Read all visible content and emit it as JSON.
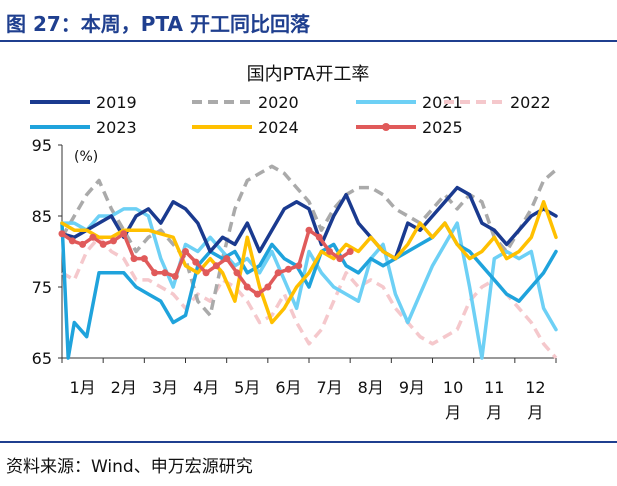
{
  "figure_title": "图 27：本周，PTA 开工同比回落",
  "source": "资料来源：Wind、申万宏源研究",
  "chart_data": {
    "type": "line",
    "title": "国内PTA开工率",
    "ylabel": "(%)",
    "ylim": [
      65,
      95
    ],
    "yticks": [
      65,
      75,
      85,
      95
    ],
    "x_range": [
      0,
      12
    ],
    "x_tick_labels": [
      {
        "line1": "1月",
        "line2": ""
      },
      {
        "line1": "2月",
        "line2": ""
      },
      {
        "line1": "3月",
        "line2": ""
      },
      {
        "line1": "4月",
        "line2": ""
      },
      {
        "line1": "5月",
        "line2": ""
      },
      {
        "line1": "6月",
        "line2": ""
      },
      {
        "line1": "7月",
        "line2": ""
      },
      {
        "line1": "8月",
        "line2": ""
      },
      {
        "line1": "9月",
        "line2": ""
      },
      {
        "line1": "10",
        "line2": "月"
      },
      {
        "line1": "11",
        "line2": "月"
      },
      {
        "line1": "12",
        "line2": "月"
      }
    ],
    "grid": false,
    "legend_position": "top",
    "series": [
      {
        "name": "2019",
        "color": "#1a3a8f",
        "dash": "solid",
        "x": [
          0.0,
          0.3,
          0.6,
          0.9,
          1.2,
          1.5,
          1.8,
          2.1,
          2.4,
          2.7,
          3.0,
          3.3,
          3.6,
          3.9,
          4.2,
          4.5,
          4.8,
          5.1,
          5.4,
          5.7,
          6.0,
          6.3,
          6.6,
          6.9,
          7.2,
          7.5,
          7.8,
          8.1,
          8.4,
          8.7,
          9.0,
          9.3,
          9.6,
          9.9,
          10.2,
          10.5,
          10.8,
          11.1,
          11.4,
          11.7,
          12.0
        ],
        "y": [
          82.5,
          82,
          83,
          84,
          85,
          82,
          85,
          86,
          84,
          87,
          86,
          84,
          80,
          82,
          81,
          84,
          80,
          83,
          86,
          87,
          86,
          81,
          85,
          88,
          84,
          82,
          80,
          79,
          84,
          83,
          85,
          87,
          89,
          88,
          84,
          83,
          81,
          83,
          85,
          86,
          85
        ]
      },
      {
        "name": "2020",
        "color": "#aaaaaa",
        "dash": "dashed",
        "x": [
          0.0,
          0.3,
          0.6,
          0.9,
          1.2,
          1.5,
          1.8,
          2.1,
          2.4,
          2.7,
          3.0,
          3.3,
          3.6,
          3.9,
          4.2,
          4.5,
          4.8,
          5.1,
          5.4,
          5.7,
          6.0,
          6.3,
          6.6,
          6.9,
          7.2,
          7.5,
          7.8,
          8.1,
          8.4,
          8.7,
          9.0,
          9.3,
          9.6,
          9.9,
          10.2,
          10.5,
          10.8,
          11.1,
          11.4,
          11.7,
          12.0
        ],
        "y": [
          82,
          85,
          88,
          90,
          86,
          83,
          80,
          82,
          83,
          81,
          79,
          73,
          71,
          79,
          86,
          90,
          91,
          92,
          91,
          89,
          87,
          83,
          86,
          88,
          89,
          89,
          88,
          86,
          85,
          84,
          86,
          88,
          86,
          88,
          87,
          82,
          80,
          83,
          86,
          90,
          91.5
        ]
      },
      {
        "name": "2021",
        "color": "#6dd0f5",
        "dash": "solid",
        "x": [
          0.0,
          0.3,
          0.6,
          0.9,
          1.2,
          1.5,
          1.8,
          2.1,
          2.4,
          2.7,
          3.0,
          3.3,
          3.6,
          3.9,
          4.2,
          4.5,
          4.8,
          5.1,
          5.4,
          5.7,
          6.0,
          6.3,
          6.6,
          6.9,
          7.2,
          7.5,
          7.8,
          8.1,
          8.4,
          8.7,
          9.0,
          9.3,
          9.6,
          9.9,
          10.2,
          10.5,
          10.8,
          11.1,
          11.4,
          11.7,
          12.0
        ],
        "y": [
          84,
          84,
          83,
          85,
          85,
          86,
          86,
          85,
          79,
          75,
          81,
          80,
          82,
          80,
          78,
          79,
          77,
          80,
          76,
          72,
          80,
          77,
          75,
          74,
          73,
          79,
          81,
          74,
          70,
          74,
          78,
          81,
          84,
          75,
          65,
          79,
          80,
          79,
          80,
          72,
          69
        ]
      },
      {
        "name": "2022",
        "color": "#f5c8cc",
        "dash": "dashed",
        "x": [
          0.0,
          0.3,
          0.6,
          0.9,
          1.2,
          1.5,
          1.8,
          2.1,
          2.4,
          2.7,
          3.0,
          3.3,
          3.6,
          3.9,
          4.2,
          4.5,
          4.8,
          5.1,
          5.4,
          5.7,
          6.0,
          6.3,
          6.6,
          6.9,
          7.2,
          7.5,
          7.8,
          8.1,
          8.4,
          8.7,
          9.0,
          9.3,
          9.6,
          9.9,
          10.2,
          10.5,
          10.8,
          11.1,
          11.4,
          11.7,
          12.0
        ],
        "y": [
          77,
          76,
          80,
          82,
          80,
          79,
          76,
          76,
          75,
          74,
          72,
          74,
          73,
          76,
          75,
          73,
          70,
          71,
          74,
          70,
          67,
          69,
          73,
          77,
          75,
          76,
          75,
          72,
          70,
          68,
          67,
          68,
          69,
          73,
          75,
          76,
          74,
          72,
          70,
          67,
          65
        ]
      },
      {
        "name": "2023",
        "color": "#1fa3dc",
        "dash": "solid",
        "x": [
          0.0,
          0.15,
          0.3,
          0.6,
          0.9,
          1.2,
          1.5,
          1.8,
          2.1,
          2.4,
          2.7,
          3.0,
          3.3,
          3.6,
          3.9,
          4.2,
          4.5,
          4.8,
          5.1,
          5.4,
          5.7,
          6.0,
          6.3,
          6.6,
          6.9,
          7.2,
          7.5,
          7.8,
          8.1,
          8.4,
          8.7,
          9.0,
          9.3,
          9.6,
          9.9,
          10.2,
          10.5,
          10.8,
          11.1,
          11.4,
          11.7,
          12.0
        ],
        "y": [
          84,
          65,
          70,
          68,
          77,
          77,
          77,
          75,
          74,
          73,
          70,
          71,
          78,
          80,
          79,
          80,
          77,
          78,
          81,
          79,
          78,
          75,
          80,
          81,
          78,
          77,
          79,
          78,
          79,
          80,
          81,
          82,
          84,
          81,
          80,
          78,
          76,
          74,
          73,
          75,
          77,
          80
        ]
      },
      {
        "name": "2024",
        "color": "#ffc000",
        "dash": "solid",
        "x": [
          0.0,
          0.3,
          0.6,
          0.9,
          1.2,
          1.5,
          1.8,
          2.1,
          2.4,
          2.7,
          3.0,
          3.3,
          3.6,
          3.9,
          4.2,
          4.5,
          4.8,
          5.1,
          5.4,
          5.7,
          6.0,
          6.3,
          6.6,
          6.9,
          7.2,
          7.5,
          7.8,
          8.1,
          8.4,
          8.7,
          9.0,
          9.3,
          9.6,
          9.9,
          10.2,
          10.5,
          10.8,
          11.1,
          11.4,
          11.7,
          12.0
        ],
        "y": [
          84,
          83,
          83,
          82,
          82,
          83,
          83,
          83,
          82.5,
          82,
          78,
          77,
          79,
          77,
          73,
          82,
          75,
          70,
          72,
          75,
          77,
          80,
          79,
          81,
          80,
          82,
          80,
          79,
          81,
          84,
          82,
          84,
          81,
          79,
          80,
          82,
          79,
          80,
          82,
          87,
          82
        ]
      },
      {
        "name": "2025",
        "color": "#e05a5a",
        "dash": "solid",
        "markers": true,
        "x": [
          0.0,
          0.25,
          0.5,
          0.75,
          1.0,
          1.25,
          1.5,
          1.75,
          2.0,
          2.25,
          2.5,
          2.75,
          3.0,
          3.25,
          3.5,
          3.75,
          4.0,
          4.25,
          4.5,
          4.75,
          5.0,
          5.25,
          5.5,
          5.75,
          6.0,
          6.25,
          6.5,
          6.75,
          7.0
        ],
        "y": [
          82.5,
          81.5,
          81,
          82,
          81,
          81.5,
          82.5,
          79,
          79,
          77,
          77,
          76.5,
          80,
          78.5,
          77,
          78,
          79,
          77,
          75,
          74,
          75,
          77,
          77.5,
          78,
          83,
          82,
          80,
          79,
          80
        ]
      }
    ]
  }
}
